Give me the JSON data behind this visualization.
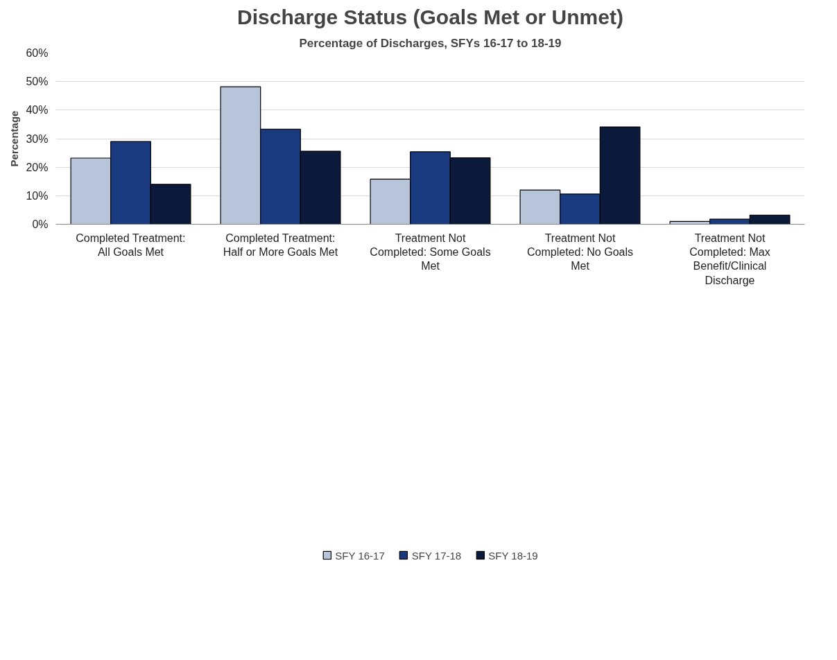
{
  "chart_data": {
    "type": "bar",
    "title": "Discharge Status (Goals Met or Unmet)",
    "subtitle": "Percentage of Discharges, SFYs 16-17 to 18-19",
    "ylabel": "Percentage",
    "categories": [
      "Completed Treatment: All Goals Met",
      "Completed Treatment: Half or More Goals Met",
      "Treatment Not Completed: Some Goals Met",
      "Treatment Not Completed: No Goals Met",
      "Treatment Not Completed: Max Benefit/Clinical Discharge"
    ],
    "series": [
      {
        "name": "SFY 16-17",
        "color": "#b8c4d9",
        "values": [
          23.2,
          48.2,
          15.8,
          12.0,
          1.0
        ]
      },
      {
        "name": "SFY 17-18",
        "color": "#1a3a80",
        "values": [
          29.0,
          33.3,
          25.4,
          10.6,
          1.8
        ]
      },
      {
        "name": "SFY 18-19",
        "color": "#0b1a3a",
        "values": [
          14.0,
          25.6,
          23.3,
          34.1,
          3.2
        ]
      }
    ],
    "ylim": [
      0,
      60
    ],
    "yticks": [
      {
        "value": 0,
        "label": "0%"
      },
      {
        "value": 10,
        "label": "10%"
      },
      {
        "value": 20,
        "label": "20%"
      },
      {
        "value": 30,
        "label": "30%"
      },
      {
        "value": 40,
        "label": "40%"
      },
      {
        "value": 50,
        "label": "50%"
      },
      {
        "value": 60,
        "label": "60%"
      }
    ],
    "grid": "y",
    "legend": "bottom"
  }
}
